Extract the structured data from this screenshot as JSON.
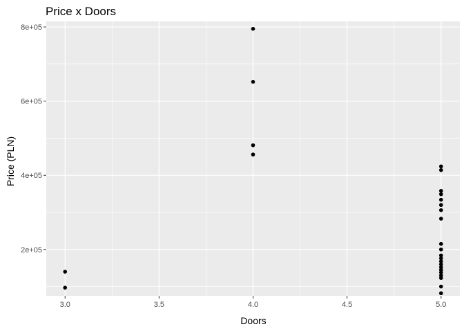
{
  "chart_data": {
    "type": "scatter",
    "title": "Price x Doors",
    "xlabel": "Doors",
    "ylabel": "Price (PLN)",
    "xlim": [
      2.9,
      5.1
    ],
    "ylim": [
      75000,
      815000
    ],
    "x_ticks": [
      3.0,
      3.5,
      4.0,
      4.5,
      5.0
    ],
    "x_tick_labels": [
      "3.0",
      "3.5",
      "4.0",
      "4.5",
      "5.0"
    ],
    "y_ticks": [
      200000,
      400000,
      600000,
      800000
    ],
    "y_tick_labels": [
      "2e+05",
      "4e+05",
      "6e+05",
      "8e+05"
    ],
    "grid": true,
    "background": "#ebebeb",
    "grid_major_color": "#ffffff",
    "point_color": "#000000",
    "points": [
      {
        "x": 3,
        "y": 140000
      },
      {
        "x": 3,
        "y": 97000
      },
      {
        "x": 4,
        "y": 795000
      },
      {
        "x": 4,
        "y": 652000
      },
      {
        "x": 4,
        "y": 481000
      },
      {
        "x": 4,
        "y": 456000
      },
      {
        "x": 5,
        "y": 424000
      },
      {
        "x": 5,
        "y": 414000
      },
      {
        "x": 5,
        "y": 358000
      },
      {
        "x": 5,
        "y": 349000
      },
      {
        "x": 5,
        "y": 334000
      },
      {
        "x": 5,
        "y": 320000
      },
      {
        "x": 5,
        "y": 306000
      },
      {
        "x": 5,
        "y": 283000
      },
      {
        "x": 5,
        "y": 215000
      },
      {
        "x": 5,
        "y": 200000
      },
      {
        "x": 5,
        "y": 184000
      },
      {
        "x": 5,
        "y": 176000
      },
      {
        "x": 5,
        "y": 168000
      },
      {
        "x": 5,
        "y": 160000
      },
      {
        "x": 5,
        "y": 152000
      },
      {
        "x": 5,
        "y": 145000
      },
      {
        "x": 5,
        "y": 138000
      },
      {
        "x": 5,
        "y": 130000
      },
      {
        "x": 5,
        "y": 123000
      },
      {
        "x": 5,
        "y": 100000
      },
      {
        "x": 5,
        "y": 82000
      }
    ]
  }
}
